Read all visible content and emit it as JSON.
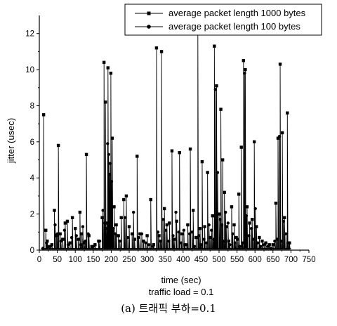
{
  "chart_data": {
    "type": "scatter",
    "xlabel": "time (sec)",
    "ylabel": "jitter (usec)",
    "subtitle": "traffic load = 0.1",
    "caption": "(a) 트래픽 부하=0.1",
    "xlim": [
      0,
      750
    ],
    "ylim": [
      0,
      13
    ],
    "x_ticks": [
      0,
      50,
      100,
      150,
      200,
      250,
      300,
      350,
      400,
      450,
      500,
      550,
      600,
      650,
      700,
      750
    ],
    "y_ticks": [
      0,
      2,
      4,
      6,
      8,
      10,
      12
    ],
    "grid": false,
    "legend_position": "top-right",
    "series": [
      {
        "name": "average packet length 1000 bytes",
        "marker": "square",
        "color": "#000000",
        "points": [
          [
            12,
            7.5
          ],
          [
            18,
            1.1
          ],
          [
            22,
            0.5
          ],
          [
            28,
            0.2
          ],
          [
            35,
            0.3
          ],
          [
            42,
            2.2
          ],
          [
            48,
            0.8
          ],
          [
            53,
            5.8
          ],
          [
            58,
            0.9
          ],
          [
            65,
            0.6
          ],
          [
            72,
            1.5
          ],
          [
            78,
            1.6
          ],
          [
            85,
            0.4
          ],
          [
            92,
            1.8
          ],
          [
            100,
            1.2
          ],
          [
            108,
            0.6
          ],
          [
            113,
            2.1
          ],
          [
            118,
            0.9
          ],
          [
            125,
            0.4
          ],
          [
            131,
            5.3
          ],
          [
            138,
            0.8
          ],
          [
            146,
            0.2
          ],
          [
            155,
            0.3
          ],
          [
            165,
            0.5
          ],
          [
            175,
            1.8
          ],
          [
            180,
            10.4
          ],
          [
            184,
            8.2
          ],
          [
            188,
            1.5
          ],
          [
            191,
            10.1
          ],
          [
            195,
            4.2
          ],
          [
            199,
            9.8
          ],
          [
            203,
            6.2
          ],
          [
            208,
            2.4
          ],
          [
            214,
            1.4
          ],
          [
            220,
            0.8
          ],
          [
            228,
            1.8
          ],
          [
            235,
            2.8
          ],
          [
            242,
            3.0
          ],
          [
            250,
            1.3
          ],
          [
            258,
            0.9
          ],
          [
            265,
            0.6
          ],
          [
            272,
            5.2
          ],
          [
            280,
            0.9
          ],
          [
            290,
            0.5
          ],
          [
            300,
            0.8
          ],
          [
            310,
            2.8
          ],
          [
            318,
            0.3
          ],
          [
            326,
            11.2
          ],
          [
            333,
            0.8
          ],
          [
            340,
            11.0
          ],
          [
            348,
            2.3
          ],
          [
            355,
            1.4
          ],
          [
            362,
            1.5
          ],
          [
            369,
            5.5
          ],
          [
            375,
            0.6
          ],
          [
            382,
            1.6
          ],
          [
            390,
            5.4
          ],
          [
            397,
            0.9
          ],
          [
            405,
            0.3
          ],
          [
            413,
            1.4
          ],
          [
            420,
            5.6
          ],
          [
            428,
            2.2
          ],
          [
            436,
            0.7
          ],
          [
            441,
            12.0
          ],
          [
            447,
            1.2
          ],
          [
            453,
            4.9
          ],
          [
            460,
            1.3
          ],
          [
            468,
            4.3
          ],
          [
            475,
            0.7
          ],
          [
            482,
            1.9
          ],
          [
            487,
            11.3
          ],
          [
            493,
            9.1
          ],
          [
            500,
            2.0
          ],
          [
            505,
            7.8
          ],
          [
            510,
            5.0
          ],
          [
            515,
            3.2
          ],
          [
            520,
            1.3
          ],
          [
            527,
            0.5
          ],
          [
            535,
            2.4
          ],
          [
            542,
            1.4
          ],
          [
            548,
            0.7
          ],
          [
            555,
            3.1
          ],
          [
            562,
            5.7
          ],
          [
            568,
            10.5
          ],
          [
            573,
            10.0
          ],
          [
            578,
            2.4
          ],
          [
            585,
            1.5
          ],
          [
            592,
            1.7
          ],
          [
            598,
            6.0
          ],
          [
            604,
            1.3
          ],
          [
            612,
            0.7
          ],
          [
            620,
            0.5
          ],
          [
            630,
            0.4
          ],
          [
            640,
            0.3
          ],
          [
            650,
            0.3
          ],
          [
            658,
            2.6
          ],
          [
            664,
            6.2
          ],
          [
            670,
            10.3
          ],
          [
            676,
            6.5
          ],
          [
            682,
            1.8
          ],
          [
            690,
            7.6
          ],
          [
            696,
            0.4
          ]
        ]
      },
      {
        "name": "average packet length 100 bytes",
        "marker": "circle",
        "color": "#000000",
        "points": [
          [
            10,
            0.1
          ],
          [
            20,
            0.4
          ],
          [
            30,
            0.2
          ],
          [
            44,
            1.4
          ],
          [
            50,
            0.9
          ],
          [
            60,
            0.5
          ],
          [
            70,
            1.1
          ],
          [
            80,
            0.3
          ],
          [
            90,
            0.7
          ],
          [
            103,
            0.8
          ],
          [
            115,
            0.3
          ],
          [
            121,
            1.3
          ],
          [
            128,
            0.5
          ],
          [
            136,
            0.9
          ],
          [
            150,
            0.2
          ],
          [
            168,
            0.5
          ],
          [
            177,
            2.2
          ],
          [
            182,
            1.5
          ],
          [
            186,
            1.2
          ],
          [
            190,
            5.9
          ],
          [
            193,
            5.3
          ],
          [
            197,
            4.8
          ],
          [
            201,
            3.8
          ],
          [
            206,
            1.2
          ],
          [
            212,
            0.9
          ],
          [
            224,
            0.5
          ],
          [
            238,
            1.8
          ],
          [
            246,
            0.7
          ],
          [
            262,
            2.1
          ],
          [
            276,
            0.7
          ],
          [
            285,
            0.9
          ],
          [
            296,
            0.4
          ],
          [
            305,
            0.3
          ],
          [
            316,
            0.2
          ],
          [
            330,
            1.0
          ],
          [
            337,
            0.5
          ],
          [
            344,
            1.7
          ],
          [
            352,
            1.1
          ],
          [
            360,
            0.5
          ],
          [
            372,
            0.8
          ],
          [
            380,
            2.1
          ],
          [
            388,
            1.0
          ],
          [
            395,
            0.4
          ],
          [
            402,
            1.1
          ],
          [
            410,
            0.3
          ],
          [
            418,
            0.9
          ],
          [
            425,
            1.0
          ],
          [
            432,
            0.2
          ],
          [
            444,
            0.8
          ],
          [
            450,
            0.3
          ],
          [
            458,
            0.6
          ],
          [
            465,
            0.4
          ],
          [
            472,
            1.4
          ],
          [
            479,
            1.1
          ],
          [
            485,
            0.6
          ],
          [
            490,
            8.9
          ],
          [
            496,
            4.3
          ],
          [
            503,
            1.7
          ],
          [
            508,
            1.4
          ],
          [
            513,
            0.5
          ],
          [
            518,
            2.1
          ],
          [
            525,
            1.5
          ],
          [
            530,
            0.3
          ],
          [
            538,
            0.9
          ],
          [
            545,
            0.4
          ],
          [
            552,
            0.6
          ],
          [
            558,
            0.2
          ],
          [
            565,
            0.4
          ],
          [
            571,
            9.8
          ],
          [
            576,
            1.9
          ],
          [
            583,
            0.8
          ],
          [
            590,
            1.2
          ],
          [
            596,
            0.6
          ],
          [
            601,
            2.3
          ],
          [
            608,
            0.4
          ],
          [
            616,
            0.2
          ],
          [
            625,
            0.3
          ],
          [
            636,
            0.2
          ],
          [
            645,
            0.1
          ],
          [
            655,
            0.5
          ],
          [
            662,
            0.6
          ],
          [
            668,
            6.3
          ],
          [
            673,
            0.5
          ],
          [
            679,
            1.6
          ],
          [
            686,
            0.9
          ],
          [
            693,
            0.4
          ]
        ]
      }
    ]
  }
}
